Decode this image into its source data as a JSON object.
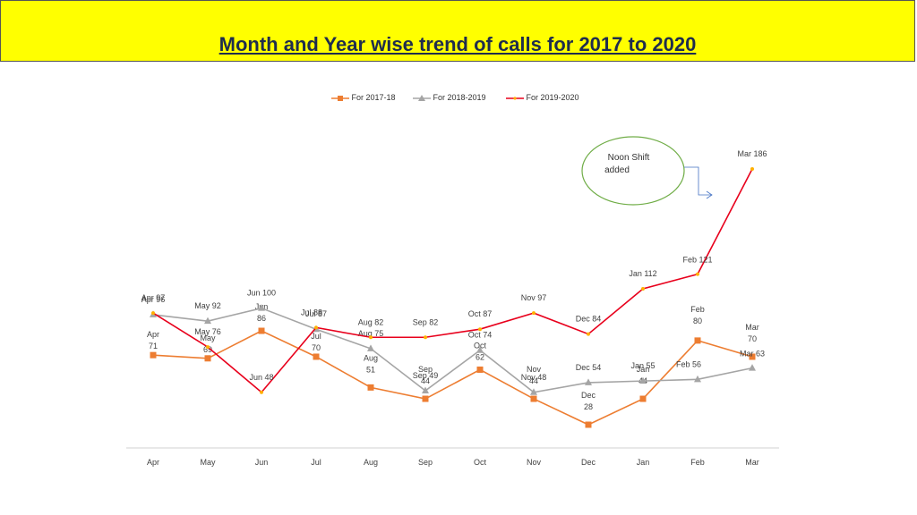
{
  "header": {
    "title": "Month and Year wise trend of calls for 2017 to 2020"
  },
  "colors": {
    "title_bg": "#ffff00",
    "title_text": "#1f2d4d",
    "s1": "#ed7d31",
    "s2": "#a5a5a5",
    "s3": "#e8001c"
  },
  "chart_data": {
    "type": "line",
    "title": "Month and Year wise trend of calls for 2017 to 2020",
    "categories": [
      "Apr",
      "May",
      "Jun",
      "Jul",
      "Aug",
      "Sep",
      "Oct",
      "Nov",
      "Dec",
      "Jan",
      "Feb",
      "Mar"
    ],
    "legend_position": "top",
    "series": [
      {
        "name": "For 2017-18",
        "color": "#ed7d31",
        "marker": "square",
        "values": [
          71,
          69,
          86,
          70,
          51,
          44,
          62,
          44,
          28,
          44,
          80,
          70
        ],
        "labels": [
          [
            "Apr",
            "71"
          ],
          [
            "May",
            "69"
          ],
          [
            "Jun",
            "86"
          ],
          [
            "Jul",
            "70"
          ],
          [
            "Aug",
            "51"
          ],
          [
            "Sep",
            "44"
          ],
          [
            "Oct",
            "62"
          ],
          [
            "Nov",
            "44"
          ],
          [
            "Dec",
            "28"
          ],
          [
            "Jan",
            "44"
          ],
          [
            "Feb",
            "80"
          ],
          [
            "Mar",
            "70"
          ]
        ]
      },
      {
        "name": "For 2018-2019",
        "color": "#a5a5a5",
        "marker": "triangle",
        "values": [
          96,
          92,
          100,
          87,
          75,
          49,
          74,
          48,
          54,
          55,
          56,
          63
        ],
        "labels": [
          [
            "Apr 96"
          ],
          [
            "May 92"
          ],
          [
            "Jun 100"
          ],
          [
            "Jul 87"
          ],
          [
            "Aug 75"
          ],
          [
            "Sep 49"
          ],
          [
            "Oct 74"
          ],
          [
            "Nov 48"
          ],
          [
            "Dec 54"
          ],
          [
            "Jan  55"
          ],
          [
            "Feb 56"
          ],
          [
            "Mar 63"
          ]
        ]
      },
      {
        "name": "For 2019-2020",
        "color": "#e8001c",
        "marker": "x",
        "values": [
          97,
          76,
          48,
          88,
          82,
          82,
          87,
          97,
          84,
          112,
          121,
          186
        ],
        "labels": [
          [
            "Apr 97"
          ],
          [
            "May 76"
          ],
          [
            "Jun 48"
          ],
          [
            "Jul 88"
          ],
          [
            "Aug 82"
          ],
          [
            "Sep 82"
          ],
          [
            "Oct 87"
          ],
          [
            "Nov 97"
          ],
          [
            "Dec 84"
          ],
          [
            "Jan  112"
          ],
          [
            "Feb 121"
          ],
          [
            "Mar 186"
          ]
        ]
      }
    ],
    "annotations": [
      {
        "text": [
          "Noon Shift",
          "added"
        ],
        "points_to": "Mar 186"
      }
    ]
  }
}
